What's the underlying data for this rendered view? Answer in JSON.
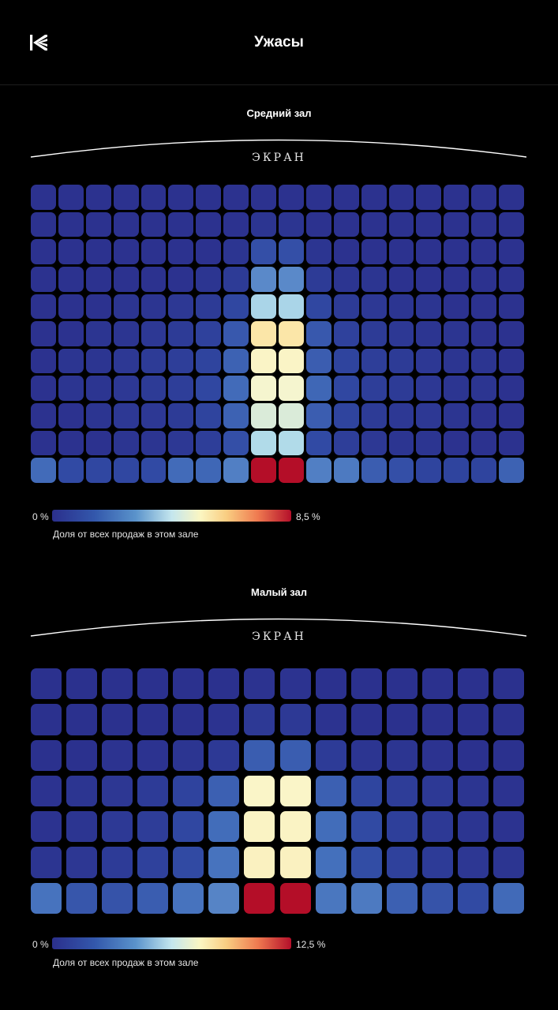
{
  "header": {
    "title": "Ужасы",
    "logo_icon": "kinopoisk-logo-icon"
  },
  "legend_caption": "Доля от всех продаж в этом зале",
  "screen_label": "ЭКРАН",
  "colors": {
    "background": "#000000",
    "low": "#2b2f8c",
    "mid": "#c4e6ee",
    "high": "#b40f2a"
  },
  "chart_data": [
    {
      "type": "heatmap",
      "title": "Средний зал",
      "screen_label": "ЭКРАН",
      "columns": 18,
      "rows": 11,
      "value_unit": "%",
      "legend": {
        "min_label": "0 %",
        "max_label": "8,5 %",
        "min": 0,
        "max": 8.5,
        "caption": "Доля от всех продаж в этом зале"
      },
      "values": [
        [
          0.1,
          0.1,
          0.1,
          0.1,
          0.1,
          0.1,
          0.1,
          0.1,
          0.1,
          0.1,
          0.1,
          0.1,
          0.1,
          0.1,
          0.1,
          0.1,
          0.1,
          0.1
        ],
        [
          0.1,
          0.1,
          0.1,
          0.1,
          0.1,
          0.1,
          0.1,
          0.1,
          0.2,
          0.2,
          0.1,
          0.1,
          0.1,
          0.1,
          0.1,
          0.1,
          0.1,
          0.1
        ],
        [
          0.1,
          0.1,
          0.1,
          0.1,
          0.1,
          0.1,
          0.1,
          0.2,
          1.0,
          1.0,
          0.2,
          0.1,
          0.1,
          0.1,
          0.1,
          0.1,
          0.1,
          0.1
        ],
        [
          0.1,
          0.1,
          0.1,
          0.1,
          0.1,
          0.1,
          0.2,
          0.4,
          2.2,
          2.2,
          0.4,
          0.2,
          0.2,
          0.1,
          0.1,
          0.1,
          0.1,
          0.1
        ],
        [
          0.1,
          0.1,
          0.1,
          0.2,
          0.2,
          0.3,
          0.4,
          0.8,
          3.5,
          3.5,
          0.8,
          0.4,
          0.3,
          0.2,
          0.2,
          0.1,
          0.1,
          0.1
        ],
        [
          0.1,
          0.1,
          0.2,
          0.2,
          0.3,
          0.4,
          0.6,
          1.2,
          5.3,
          5.3,
          1.2,
          0.6,
          0.4,
          0.3,
          0.2,
          0.2,
          0.1,
          0.1
        ],
        [
          0.1,
          0.2,
          0.2,
          0.3,
          0.4,
          0.5,
          0.7,
          1.4,
          4.8,
          4.8,
          1.3,
          0.7,
          0.5,
          0.4,
          0.3,
          0.2,
          0.2,
          0.1
        ],
        [
          0.1,
          0.2,
          0.2,
          0.3,
          0.4,
          0.5,
          0.8,
          1.6,
          4.6,
          4.6,
          1.5,
          0.8,
          0.5,
          0.4,
          0.3,
          0.2,
          0.2,
          0.1
        ],
        [
          0.1,
          0.1,
          0.2,
          0.3,
          0.3,
          0.4,
          0.7,
          1.4,
          4.2,
          4.2,
          1.3,
          0.7,
          0.4,
          0.3,
          0.3,
          0.2,
          0.1,
          0.1
        ],
        [
          0.1,
          0.1,
          0.1,
          0.2,
          0.2,
          0.3,
          0.5,
          1.0,
          3.6,
          3.6,
          0.9,
          0.5,
          0.3,
          0.2,
          0.2,
          0.1,
          0.1,
          0.1
        ],
        [
          1.6,
          0.9,
          0.8,
          0.8,
          0.9,
          1.6,
          1.5,
          2.0,
          8.5,
          8.5,
          2.0,
          1.9,
          1.3,
          1.0,
          0.7,
          0.7,
          0.7,
          1.4
        ]
      ]
    },
    {
      "type": "heatmap",
      "title": "Малый зал",
      "screen_label": "ЭКРАН",
      "columns": 14,
      "rows": 7,
      "value_unit": "%",
      "legend": {
        "min_label": "0 %",
        "max_label": "12,5 %",
        "min": 0,
        "max": 12.5,
        "caption": "Доля от всех продаж в этом зале"
      },
      "values": [
        [
          0.1,
          0.1,
          0.1,
          0.1,
          0.1,
          0.1,
          0.2,
          0.2,
          0.1,
          0.1,
          0.1,
          0.1,
          0.1,
          0.1
        ],
        [
          0.1,
          0.1,
          0.1,
          0.1,
          0.1,
          0.2,
          0.5,
          0.5,
          0.2,
          0.1,
          0.1,
          0.1,
          0.1,
          0.1
        ],
        [
          0.1,
          0.1,
          0.2,
          0.2,
          0.3,
          0.5,
          1.9,
          1.9,
          0.6,
          0.3,
          0.3,
          0.2,
          0.1,
          0.1
        ],
        [
          0.2,
          0.3,
          0.4,
          0.6,
          1.0,
          2.0,
          7.0,
          7.0,
          2.0,
          1.1,
          0.7,
          0.5,
          0.3,
          0.2
        ],
        [
          0.2,
          0.3,
          0.5,
          0.7,
          1.2,
          2.4,
          7.1,
          7.1,
          2.4,
          1.3,
          0.8,
          0.5,
          0.3,
          0.2
        ],
        [
          0.3,
          0.4,
          0.6,
          0.9,
          1.3,
          2.6,
          7.2,
          7.2,
          2.5,
          1.4,
          0.9,
          0.6,
          0.4,
          0.3
        ],
        [
          2.6,
          1.7,
          1.6,
          1.9,
          2.6,
          3.1,
          12.5,
          12.5,
          2.7,
          2.8,
          2.0,
          1.6,
          1.3,
          2.3
        ]
      ]
    }
  ]
}
